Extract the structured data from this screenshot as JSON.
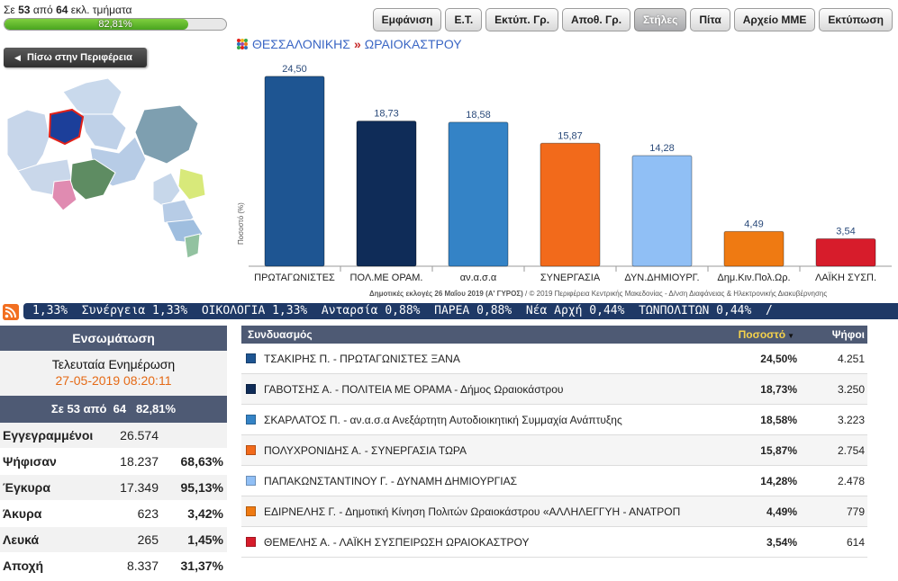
{
  "progress": {
    "prefix": "Σε",
    "counted": "53",
    "middle": "από",
    "total": "64",
    "suffix": "εκλ. τμήματα",
    "percent_label": "82,81%",
    "fraction": 0.8281
  },
  "toolbar": {
    "buttons": [
      "Εμφάνιση",
      "Ε.Τ.",
      "Εκτύπ. Γρ.",
      "Αποθ. Γρ.",
      "Στήλες",
      "Πίτα",
      "Αρχείο ΜΜΕ",
      "Εκτύπωση"
    ],
    "active_index": 4
  },
  "back_button": {
    "label": "Πίσω στην Περιφέρεια"
  },
  "breadcrumb": {
    "region": "ΘΕΣΣΑΛΟΝΙΚΗΣ",
    "separator": "»",
    "municipality": "ΩΡΑΙΟΚΑΣΤΡΟΥ"
  },
  "chart_data": {
    "type": "bar",
    "categories": [
      "ΠΡΩΤΑΓΩΝΙΣΤΕΣ",
      "ΠΟΛ.ΜΕ ΟΡΑΜ.",
      "αν.α.σ.α",
      "ΣΥΝΕΡΓΑΣΙΑ",
      "ΔΥΝ.ΔΗΜΙΟΥΡΓ.",
      "Δημ.Κιν.Πολ.Ωρ.",
      "ΛΑΪΚΗ ΣΥΣΠ."
    ],
    "values": [
      24.5,
      18.73,
      18.58,
      15.87,
      14.28,
      4.49,
      3.54
    ],
    "value_labels": [
      "24,50",
      "18,73",
      "18,58",
      "15,87",
      "14,28",
      "4,49",
      "3,54"
    ],
    "colors": [
      "#1e5592",
      "#0f2c58",
      "#3483c6",
      "#f26a1b",
      "#90bff5",
      "#ef7a12",
      "#d71c2b"
    ],
    "ylabel": "Ποσοστό (%)",
    "ylim": [
      0,
      26
    ],
    "footer_bold": "Δημοτικές εκλογές 26 Μαΐου 2019 (Α' ΓΥΡΟΣ)",
    "footer_rest": " / © 2019 Περιφέρεια Κεντρικής Μακεδονίας - Δ/νση Διαφάνειας & Ηλεκτρονικής Διακυβέρνησης"
  },
  "ticker": {
    "text": "1,33%  Συνέργεια 1,33%  ΟΙΚΟΛΟΓΙΑ 1,33%  Ανταρσία 0,88%  ΠΑΡΕΑ 0,88%  Νέα Αρχή 0,44%  ΤΩΝΠΟΛΙΤΩΝ 0,44%  /"
  },
  "summary": {
    "title": "Ενσωμάτωση",
    "update_label": "Τελευταία Ενημέρωση",
    "update_time": "27-05-2019 08:20:11",
    "counted_line": "Σε 53 από  64   82,81%",
    "rows": [
      {
        "label": "Εγγεγραμμένοι",
        "value": "26.574",
        "pct": ""
      },
      {
        "label": "Ψήφισαν",
        "value": "18.237",
        "pct": "68,63%"
      },
      {
        "label": "Έγκυρα",
        "value": "17.349",
        "pct": "95,13%"
      },
      {
        "label": "Άκυρα",
        "value": "623",
        "pct": "3,42%"
      },
      {
        "label": "Λευκά",
        "value": "265",
        "pct": "1,45%"
      },
      {
        "label": "Αποχή",
        "value": "8.337",
        "pct": "31,37%"
      }
    ]
  },
  "results": {
    "headers": {
      "name": "Συνδυασμός",
      "pct": "Ποσοστό",
      "votes": "Ψήφοι"
    },
    "rows": [
      {
        "name": "ΤΣΑΚΙΡΗΣ Π. - ΠΡΩΤΑΓΩΝΙΣΤΕΣ ΞΑΝΑ",
        "pct": "24,50%",
        "votes": "4.251",
        "color": "#1e5592"
      },
      {
        "name": "ΓΑΒΟΤΣΗΣ Α. - ΠΟΛΙΤΕΙΑ ΜΕ ΟΡΑΜΑ - Δήμος Ωραιοκάστρου",
        "pct": "18,73%",
        "votes": "3.250",
        "color": "#0f2c58"
      },
      {
        "name": "ΣΚΑΡΛΑΤΟΣ Π. - αν.α.σ.α Ανεξάρτητη Αυτοδιοικητική Συμμαχία Ανάπτυξης",
        "pct": "18,58%",
        "votes": "3.223",
        "color": "#3483c6"
      },
      {
        "name": "ΠΟΛΥΧΡΟΝΙΔΗΣ Α. - ΣΥΝΕΡΓΑΣΙΑ ΤΩΡΑ",
        "pct": "15,87%",
        "votes": "2.754",
        "color": "#f26a1b"
      },
      {
        "name": "ΠΑΠΑΚΩΝΣΤΑΝΤΙΝΟΥ Γ. - ΔΥΝΑΜΗ ΔΗΜΙΟΥΡΓΙΑΣ",
        "pct": "14,28%",
        "votes": "2.478",
        "color": "#90bff5"
      },
      {
        "name": "ΕΔΙΡΝΕΛΗΣ Γ. - Δημοτική Κίνηση Πολιτών Ωραιοκάστρου «ΑΛΛΗΛΕΓΓΥΗ - ΑΝΑΤΡΟΠ",
        "pct": "4,49%",
        "votes": "779",
        "color": "#ef7a12"
      },
      {
        "name": "ΘΕΜΕΛΗΣ Α. - ΛΑΪΚΗ ΣΥΣΠΕΙΡΩΣΗ ΩΡΑΙΟΚΑΣΤΡΟΥ",
        "pct": "3,54%",
        "votes": "614",
        "color": "#d71c2b"
      }
    ]
  }
}
